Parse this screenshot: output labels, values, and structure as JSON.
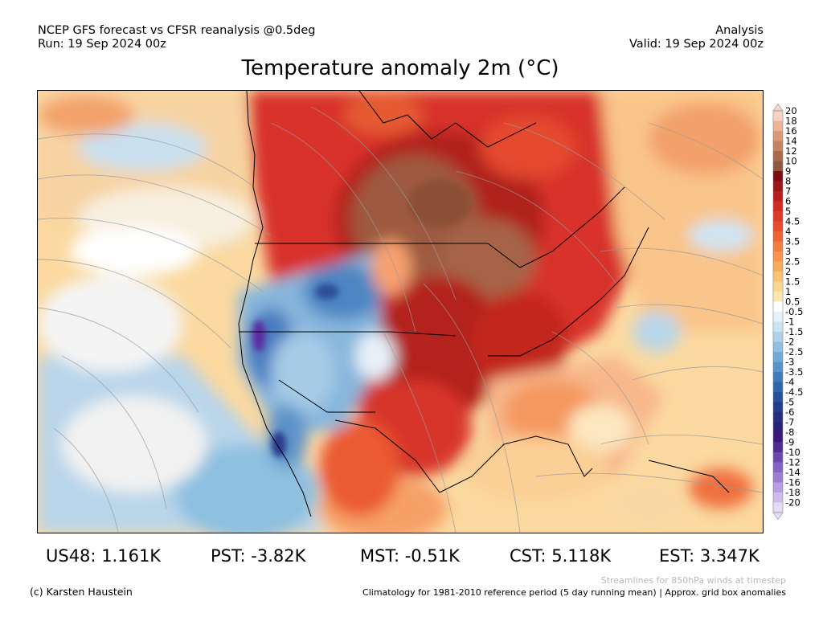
{
  "header": {
    "left_line1": "NCEP GFS forecast vs CFSR reanalysis @0.5deg",
    "left_line2": "Run: 19 Sep 2024 00z",
    "right_line1": "Analysis",
    "right_line2": "Valid: 19 Sep 2024 00z"
  },
  "title": "Temperature anomaly 2m (°C)",
  "colorbar": {
    "labels": [
      "20",
      "18",
      "16",
      "14",
      "12",
      "10",
      "9",
      "8",
      "7",
      "6",
      "5",
      "4.5",
      "4",
      "3.5",
      "3",
      "2.5",
      "2",
      "1.5",
      "1",
      "0.5",
      "-0.5",
      "-1",
      "-1.5",
      "-2",
      "-2.5",
      "-3",
      "-3.5",
      "-4",
      "-4.5",
      "-5",
      "-6",
      "-7",
      "-8",
      "-9",
      "-10",
      "-12",
      "-14",
      "-16",
      "-18",
      "-20"
    ],
    "colors": [
      "#f6d3c4",
      "#edb49a",
      "#dd9878",
      "#c68363",
      "#aa6a4d",
      "#8f573e",
      "#7e0c12",
      "#9c1518",
      "#b71e1e",
      "#cf2c26",
      "#de3a2a",
      "#e84b2e",
      "#ef6335",
      "#f37d3f",
      "#f6954b",
      "#f8ad5c",
      "#f9c375",
      "#fbd690",
      "#fde6b0",
      "#ffffff",
      "#e6f2fa",
      "#cbe3f2",
      "#afd2ea",
      "#91bfe0",
      "#72aad5",
      "#5593c8",
      "#3e7cba",
      "#2e66aa",
      "#25509a",
      "#203d8b",
      "#262e7f",
      "#2d2176",
      "#3b1a7a",
      "#522c92",
      "#6c47ac",
      "#8463c2",
      "#9b80d2",
      "#b39ee0",
      "#cbbdec",
      "#e3dcf6"
    ]
  },
  "stats": [
    {
      "label": "US48:",
      "value": "1.161K"
    },
    {
      "label": "PST:",
      "value": "-3.82K"
    },
    {
      "label": "MST:",
      "value": "-0.51K"
    },
    {
      "label": "CST:",
      "value": "5.118K"
    },
    {
      "label": "EST:",
      "value": "3.347K"
    }
  ],
  "footer": {
    "credit": "(c) Karsten Haustein",
    "stream_note": "Streamlines for 850hPa winds at timestep",
    "clim_note": "Climatology for 1981-2010 reference period (5 day running mean) | Approx. grid box anomalies"
  }
}
